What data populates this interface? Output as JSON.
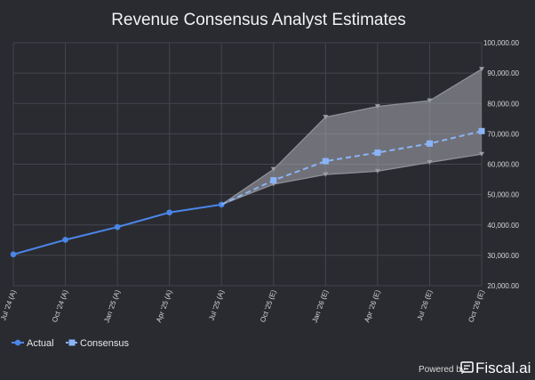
{
  "chart_data": {
    "type": "line",
    "title": "Revenue Consensus Analyst Estimates",
    "categories": [
      "Jul '24 (A)",
      "Oct '24 (A)",
      "Jan '25 (A)",
      "Apr '25 (A)",
      "Jul '25 (A)",
      "Oct '25 (E)",
      "Jan '26 (E)",
      "Apr '26 (E)",
      "Jul '26 (E)",
      "Oct '26 (E)"
    ],
    "ylim": [
      20000,
      100000
    ],
    "yticks": [
      "20,000.00",
      "30,000.00",
      "40,000.00",
      "50,000.00",
      "60,000.00",
      "70,000.00",
      "80,000.00",
      "90,000.00",
      "100,000.00"
    ],
    "ytick_values": [
      20000,
      30000,
      40000,
      50000,
      60000,
      70000,
      80000,
      90000,
      100000
    ],
    "grid": true,
    "legend_position": "bottom-left",
    "series": [
      {
        "name": "Actual",
        "values": [
          30300,
          35100,
          39300,
          44100,
          46700,
          null,
          null,
          null,
          null,
          null
        ],
        "color": "#4a86e8"
      },
      {
        "name": "Consensus",
        "values": [
          null,
          null,
          null,
          null,
          46700,
          54700,
          61000,
          63800,
          66800,
          70900
        ],
        "color": "#8ab4f8",
        "dashed": true
      },
      {
        "name": "",
        "values": [
          null,
          null,
          null,
          null,
          46700,
          58300,
          75500,
          79000,
          80900,
          91300
        ],
        "role": "high-estimate"
      },
      {
        "name": "",
        "values": [
          null,
          null,
          null,
          null,
          46700,
          53400,
          56600,
          57700,
          60600,
          63300
        ],
        "role": "low-estimate"
      }
    ],
    "band_color": "#a9abb3"
  },
  "footer": {
    "powered_by": "Powered by",
    "brand": "Fiscal.ai"
  }
}
